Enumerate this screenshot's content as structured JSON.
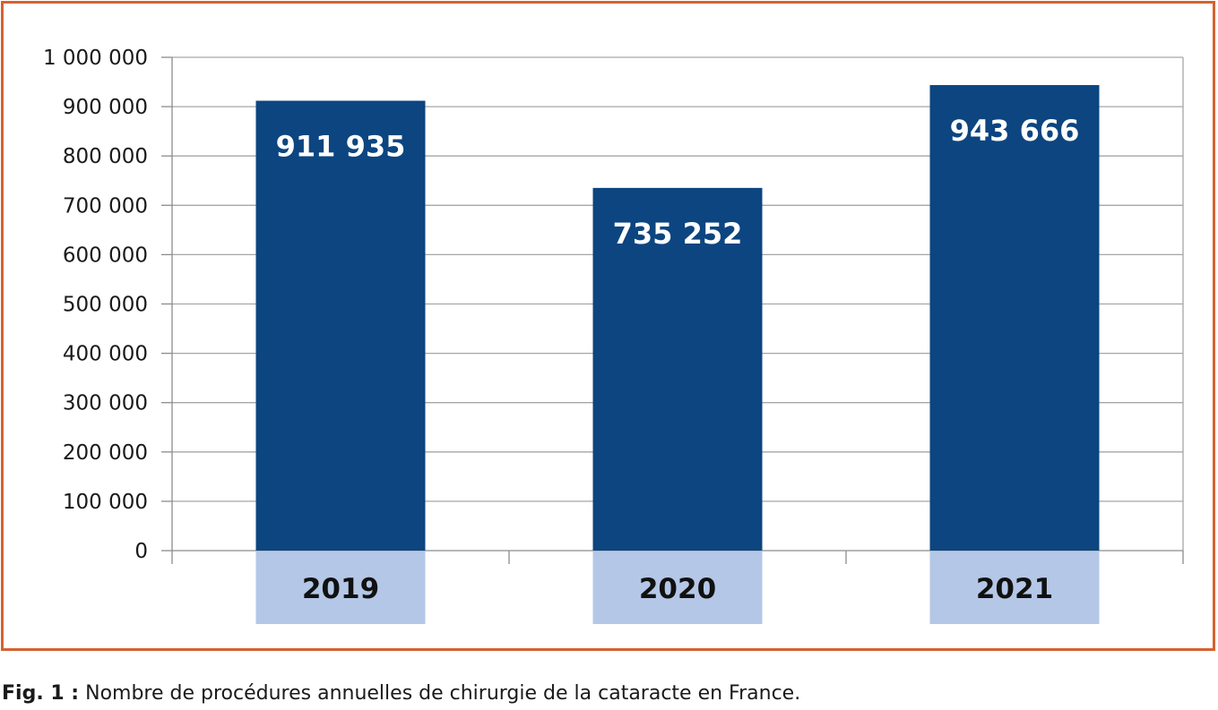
{
  "chart_data": {
    "type": "bar",
    "categories": [
      "2019",
      "2020",
      "2021"
    ],
    "values": [
      911935,
      735252,
      943666
    ],
    "data_labels": [
      "911 935",
      "735 252",
      "943 666"
    ],
    "ylim": [
      0,
      1000000
    ],
    "yticks": [
      0,
      100000,
      200000,
      300000,
      400000,
      500000,
      600000,
      700000,
      800000,
      900000,
      1000000
    ],
    "ytick_labels": [
      "0",
      "100 000",
      "200 000",
      "300 000",
      "400 000",
      "500 000",
      "600 000",
      "700 000",
      "800 000",
      "900 000",
      "1 000 000"
    ],
    "grid": true,
    "legend": "none",
    "colors": {
      "bar": "#0c4580",
      "category_box": "#b4c7e7",
      "data_label": "#ffffff",
      "grid": "#a6a6a6",
      "frame_border": "#d4622f"
    }
  },
  "caption": {
    "label": "Fig. 1 :",
    "text": "Nombre de procédures annuelles de chirurgie de la cataracte en France."
  }
}
